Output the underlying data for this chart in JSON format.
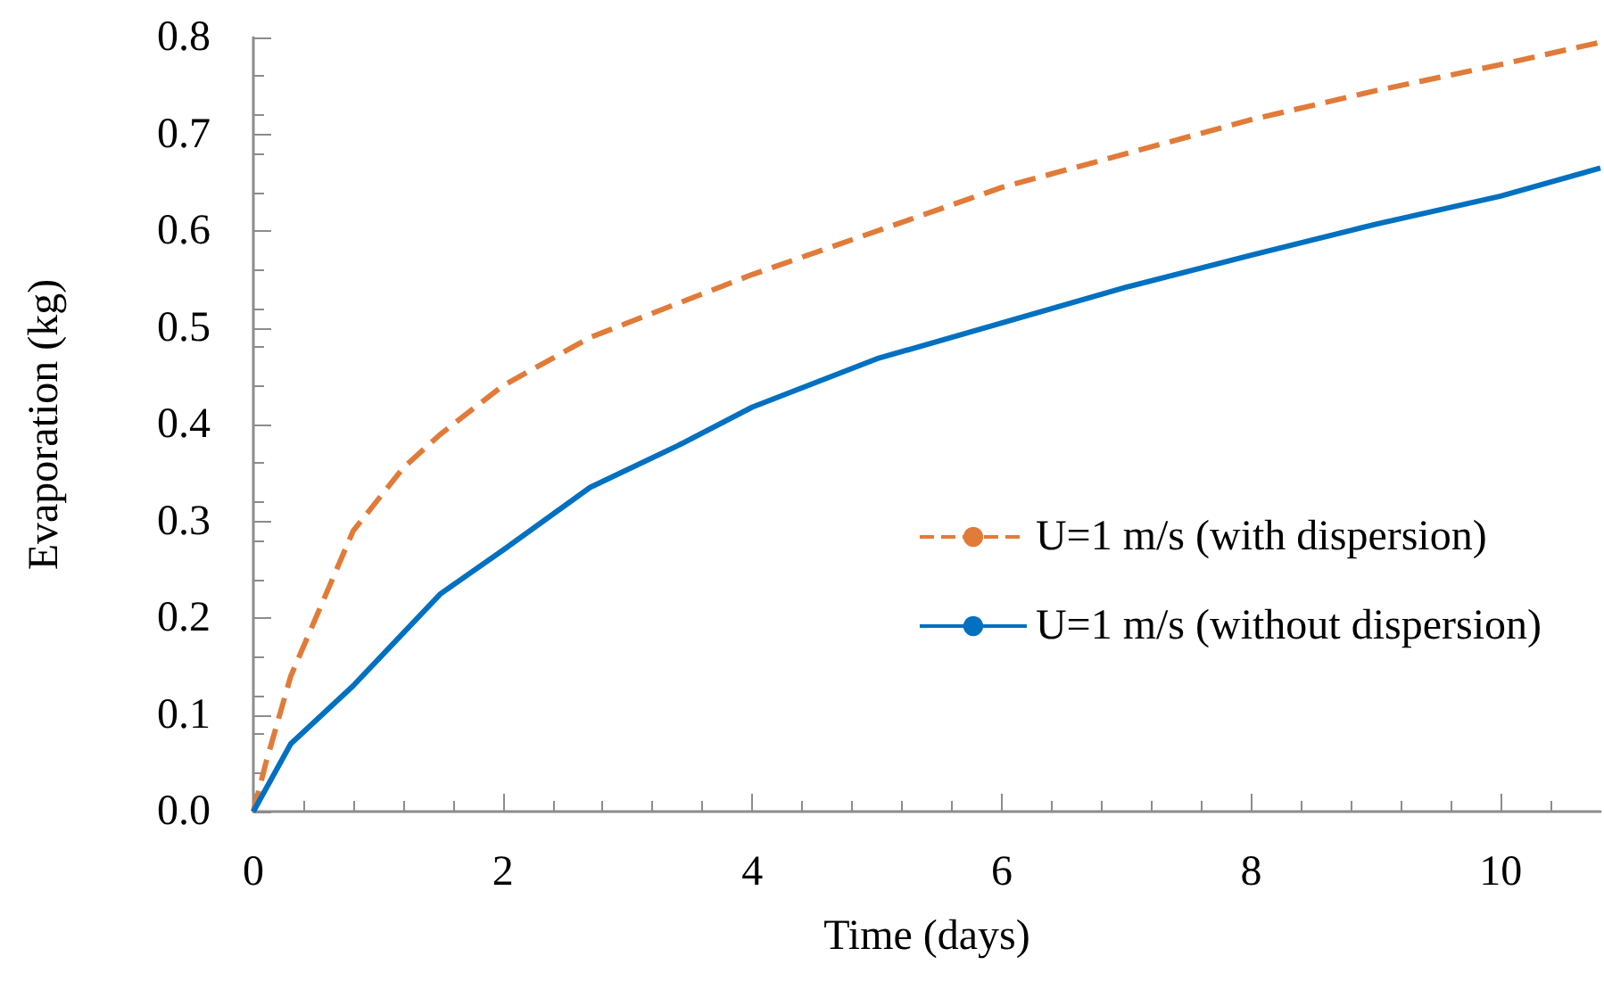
{
  "chart_data": {
    "type": "line",
    "xlabel": "Time (days)",
    "ylabel": "Evaporation (kg)",
    "xlim": [
      0,
      10.8
    ],
    "xticks": [
      0,
      2,
      4,
      6,
      8,
      10
    ],
    "ylim": [
      0,
      0.8
    ],
    "yticks": [
      {
        "value": 0,
        "label": "0.0"
      },
      0.1,
      0.2,
      0.3,
      0.4,
      0.5,
      0.6,
      0.7,
      0.8
    ],
    "grid": false,
    "legend": "right",
    "marker": "none",
    "series": [
      {
        "name": "U=1 m/s (with dispersion)",
        "color": "#e07b39",
        "line_style": "dashed",
        "x": [
          0,
          0.1,
          0.3,
          0.5,
          0.8,
          1.2,
          1.5,
          2,
          2.7,
          3.4,
          4,
          5,
          6,
          7,
          8,
          9,
          10,
          10.8
        ],
        "values": [
          0,
          0.05,
          0.14,
          0.2,
          0.29,
          0.355,
          0.39,
          0.44,
          0.49,
          0.525,
          0.555,
          0.6,
          0.645,
          0.68,
          0.715,
          0.745,
          0.772,
          0.795
        ]
      },
      {
        "name": "U=1 m/s (without dispersion)",
        "color": "#0070c0",
        "line_style": "solid",
        "x": [
          0,
          0.3,
          0.8,
          1.5,
          2,
          2.7,
          3.4,
          4,
          5,
          6,
          7,
          8,
          9,
          10,
          10.8
        ],
        "values": [
          0,
          0.07,
          0.13,
          0.225,
          0.27,
          0.335,
          0.378,
          0.418,
          0.468,
          0.505,
          0.542,
          0.575,
          0.607,
          0.636,
          0.665
        ]
      }
    ]
  }
}
